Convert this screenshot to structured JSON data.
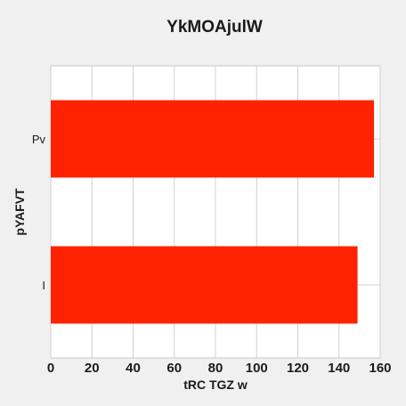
{
  "chart_data": {
    "type": "bar",
    "orientation": "horizontal",
    "title": "YkMOAjulW",
    "xlabel": "tRC TGZ w",
    "ylabel": "pYAFVT",
    "categories": [
      "I",
      "Pv"
    ],
    "values": [
      149,
      157
    ],
    "xlim": [
      0,
      160
    ],
    "xticks": [
      0,
      20,
      40,
      60,
      80,
      100,
      120,
      140,
      160
    ],
    "bar_color": "#ff2200",
    "grid": true,
    "legend": "none"
  }
}
